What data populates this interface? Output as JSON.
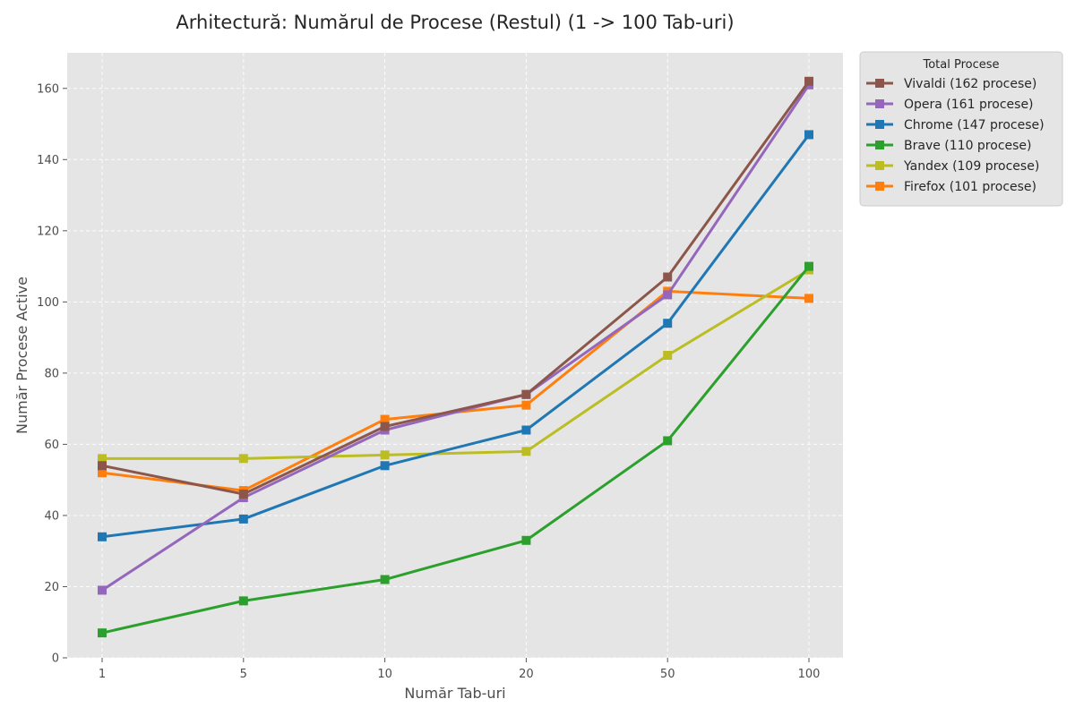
{
  "chart_data": {
    "type": "line",
    "title": "Arhitectură: Numărul de Procese (Restul) (1 -> 100 Tab-uri)",
    "xlabel": "Număr Tab-uri",
    "ylabel": "Număr Procese Active",
    "categories": [
      "1",
      "5",
      "10",
      "20",
      "50",
      "100"
    ],
    "ylim": [
      0,
      170
    ],
    "yticks": [
      0,
      20,
      40,
      60,
      80,
      100,
      120,
      140,
      160
    ],
    "grid": true,
    "legend": {
      "title": "Total Procese",
      "placement": "outside-top-right"
    },
    "series": [
      {
        "name": "Vivaldi (162 procese)",
        "color": "#8c564b",
        "values": [
          54,
          46,
          65,
          74,
          107,
          162
        ]
      },
      {
        "name": "Opera (161 procese)",
        "color": "#9467bd",
        "values": [
          19,
          45,
          64,
          74,
          102,
          161
        ]
      },
      {
        "name": "Chrome (147 procese)",
        "color": "#1f77b4",
        "values": [
          34,
          39,
          54,
          64,
          94,
          147
        ]
      },
      {
        "name": "Brave (110 procese)",
        "color": "#2ca02c",
        "values": [
          7,
          16,
          22,
          33,
          61,
          110
        ]
      },
      {
        "name": "Yandex (109 procese)",
        "color": "#bcbd22",
        "values": [
          56,
          56,
          57,
          58,
          85,
          109
        ]
      },
      {
        "name": "Firefox (101 procese)",
        "color": "#ff7f0e",
        "values": [
          52,
          47,
          67,
          71,
          103,
          101
        ]
      }
    ]
  },
  "colors": {
    "plot_background": "#e5e5e5",
    "grid": "#ffffff",
    "legend_background": "#e5e5e5",
    "legend_border": "#cccccc"
  }
}
